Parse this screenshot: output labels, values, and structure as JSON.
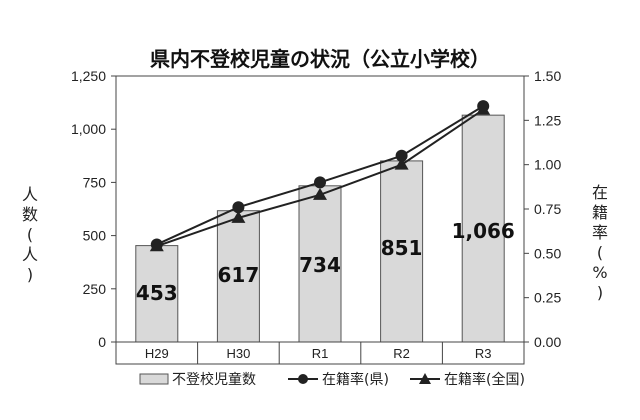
{
  "chart_data": {
    "type": "bar",
    "title": "県内不登校児童の状況（公立小学校）",
    "categories": [
      "H29",
      "H30",
      "R1",
      "R2",
      "R3"
    ],
    "series": [
      {
        "name": "不登校児童数",
        "kind": "bar",
        "axis": "left",
        "values": [
          453,
          617,
          734,
          851,
          1066
        ],
        "data_labels": [
          "453",
          "617",
          "734",
          "851",
          "1,066"
        ]
      },
      {
        "name": "在籍率(県)",
        "kind": "line",
        "marker": "circle",
        "axis": "right",
        "values": [
          0.55,
          0.76,
          0.9,
          1.05,
          1.33
        ]
      },
      {
        "name": "在籍率(全国)",
        "kind": "line",
        "marker": "triangle",
        "axis": "right",
        "values": [
          0.54,
          0.7,
          0.83,
          1.0,
          1.31
        ]
      }
    ],
    "ylabel_left": "人数(人)",
    "ylabel_right": "在籍率(%)",
    "ylim_left": [
      0,
      1250
    ],
    "ylim_right": [
      0,
      1.5
    ],
    "yticks_left": [
      "0",
      "250",
      "500",
      "750",
      "1,000",
      "1,250"
    ],
    "yticks_right": [
      "0.00",
      "0.25",
      "0.50",
      "0.75",
      "1.00",
      "1.25",
      "1.50"
    ],
    "grid": false,
    "legend_position": "bottom",
    "colors": {
      "bar_fill": "#d9d9d9",
      "bar_stroke": "#555555",
      "line": "#222222"
    }
  }
}
